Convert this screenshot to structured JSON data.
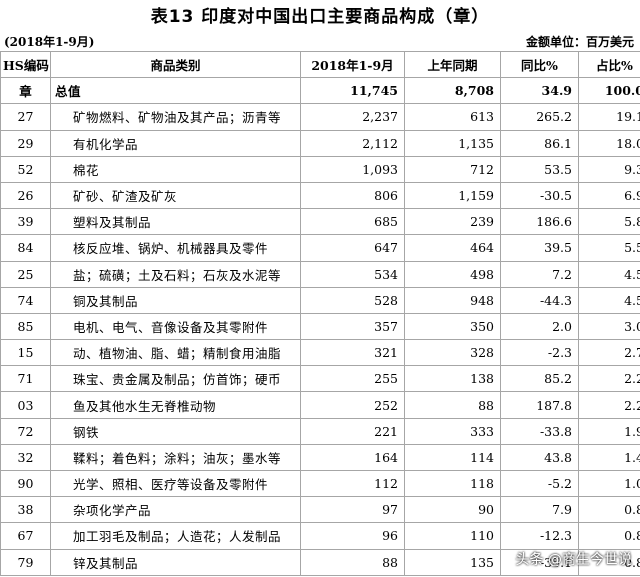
{
  "title": "表13  印度对中国出口主要商品构成（章）",
  "period": "(2018年1-9月)",
  "unit": "金额单位：百万美元",
  "headers": [
    "HS编码",
    "商品类别",
    "2018年1-9月",
    "上年同期",
    "同比%",
    "占比%"
  ],
  "total": {
    "code": "章",
    "name": "总值",
    "current": "11,745",
    "previous": "8,708",
    "yoy": "34.9",
    "share": "100.0"
  },
  "rows": [
    {
      "code": "27",
      "name": "矿物燃料、矿物油及其产品；沥青等",
      "current": "2,237",
      "previous": "613",
      "yoy": "265.2",
      "share": "19.1"
    },
    {
      "code": "29",
      "name": "有机化学品",
      "current": "2,112",
      "previous": "1,135",
      "yoy": "86.1",
      "share": "18.0"
    },
    {
      "code": "52",
      "name": "棉花",
      "current": "1,093",
      "previous": "712",
      "yoy": "53.5",
      "share": "9.3"
    },
    {
      "code": "26",
      "name": "矿砂、矿渣及矿灰",
      "current": "806",
      "previous": "1,159",
      "yoy": "-30.5",
      "share": "6.9"
    },
    {
      "code": "39",
      "name": "塑料及其制品",
      "current": "685",
      "previous": "239",
      "yoy": "186.6",
      "share": "5.8"
    },
    {
      "code": "84",
      "name": "核反应堆、锅炉、机械器具及零件",
      "current": "647",
      "previous": "464",
      "yoy": "39.5",
      "share": "5.5"
    },
    {
      "code": "25",
      "name": "盐；硫磺；土及石料；石灰及水泥等",
      "current": "534",
      "previous": "498",
      "yoy": "7.2",
      "share": "4.5"
    },
    {
      "code": "74",
      "name": "铜及其制品",
      "current": "528",
      "previous": "948",
      "yoy": "-44.3",
      "share": "4.5"
    },
    {
      "code": "85",
      "name": "电机、电气、音像设备及其零附件",
      "current": "357",
      "previous": "350",
      "yoy": "2.0",
      "share": "3.0"
    },
    {
      "code": "15",
      "name": "动、植物油、脂、蜡；精制食用油脂",
      "current": "321",
      "previous": "328",
      "yoy": "-2.3",
      "share": "2.7"
    },
    {
      "code": "71",
      "name": "珠宝、贵金属及制品；仿首饰；硬币",
      "current": "255",
      "previous": "138",
      "yoy": "85.2",
      "share": "2.2"
    },
    {
      "code": "03",
      "name": "鱼及其他水生无脊椎动物",
      "current": "252",
      "previous": "88",
      "yoy": "187.8",
      "share": "2.2"
    },
    {
      "code": "72",
      "name": "钢铁",
      "current": "221",
      "previous": "333",
      "yoy": "-33.8",
      "share": "1.9"
    },
    {
      "code": "32",
      "name": "鞣料；着色料；涂料；油灰；墨水等",
      "current": "164",
      "previous": "114",
      "yoy": "43.8",
      "share": "1.4"
    },
    {
      "code": "90",
      "name": "光学、照相、医疗等设备及零附件",
      "current": "112",
      "previous": "118",
      "yoy": "-5.2",
      "share": "1.0"
    },
    {
      "code": "38",
      "name": "杂项化学产品",
      "current": "97",
      "previous": "90",
      "yoy": "7.9",
      "share": "0.8"
    },
    {
      "code": "67",
      "name": "加工羽毛及制品；人造花；人发制品",
      "current": "96",
      "previous": "110",
      "yoy": "-12.3",
      "share": "0.8"
    },
    {
      "code": "79",
      "name": "锌及其制品",
      "current": "88",
      "previous": "135",
      "yoy": "-35.1",
      "share": "0.8"
    }
  ],
  "watermark": "头条 @商生今世说"
}
